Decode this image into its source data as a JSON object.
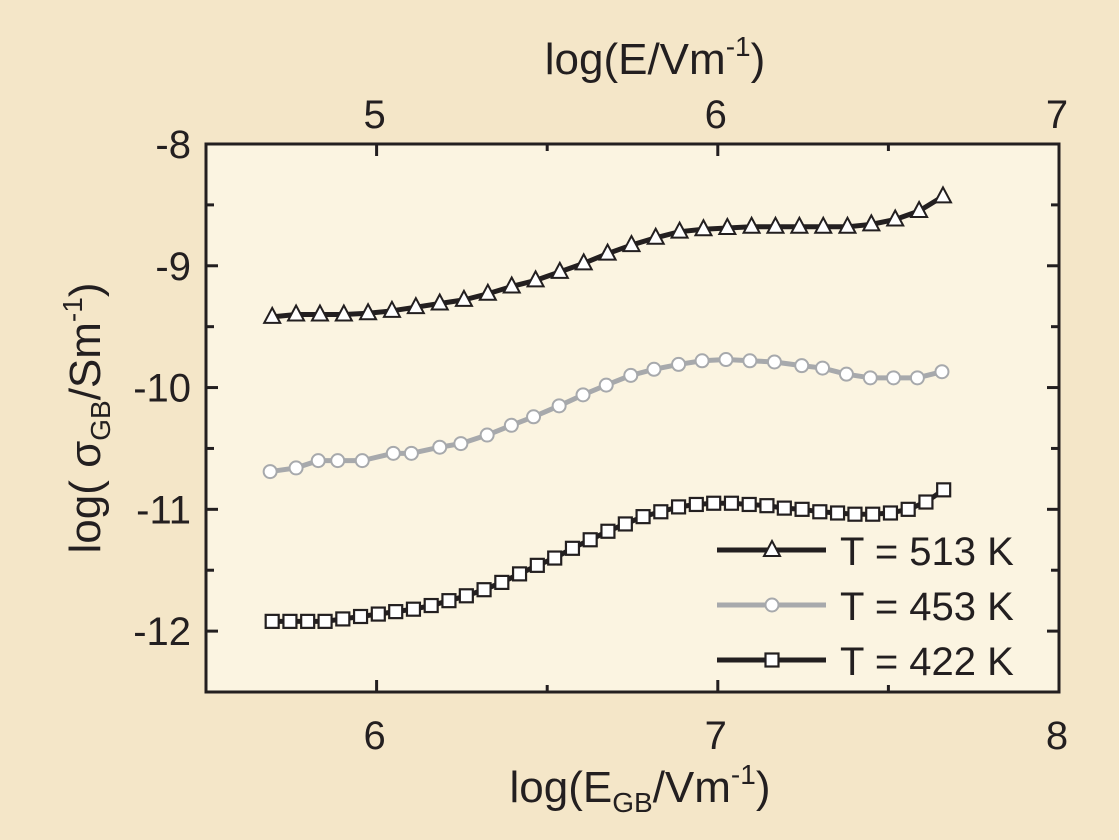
{
  "chart_data": {
    "type": "line",
    "xlabel": {
      "main": "log(E",
      "sub": "GB",
      "mid": "/Vm",
      "sup": "-1",
      "end": ")"
    },
    "x2label": {
      "main": "log(E/Vm",
      "sup": "-1",
      "end": ")"
    },
    "ylabel": {
      "main": "log( σ",
      "sub": "GB",
      "mid": "/Sm",
      "sup": "-1",
      "end": ")"
    },
    "xlim": [
      5.5,
      8
    ],
    "ylim": [
      -12.5,
      -8
    ],
    "x2lim": [
      4.5,
      7
    ],
    "xticks": [
      "6",
      "7",
      "8"
    ],
    "x2ticks": [
      "5",
      "6",
      "7"
    ],
    "yticks": [
      "-8",
      "-9",
      "-10",
      "-11",
      "-12"
    ],
    "grid": false,
    "legend_position": "bottom-right",
    "series": [
      {
        "name": "T = 513 K",
        "marker": "triangle",
        "color": "#231f20",
        "x": [
          5.694,
          5.764,
          5.834,
          5.904,
          5.975,
          6.045,
          6.115,
          6.185,
          6.256,
          6.326,
          6.396,
          6.466,
          6.537,
          6.607,
          6.677,
          6.747,
          6.818,
          6.888,
          6.958,
          7.028,
          7.099,
          7.169,
          7.239,
          7.309,
          7.38,
          7.45,
          7.52,
          7.59,
          7.66
        ],
        "y": [
          -9.42,
          -9.4,
          -9.4,
          -9.4,
          -9.39,
          -9.37,
          -9.34,
          -9.31,
          -9.28,
          -9.23,
          -9.17,
          -9.12,
          -9.05,
          -8.98,
          -8.9,
          -8.83,
          -8.77,
          -8.72,
          -8.7,
          -8.69,
          -8.68,
          -8.68,
          -8.68,
          -8.68,
          -8.68,
          -8.66,
          -8.62,
          -8.55,
          -8.43
        ]
      },
      {
        "name": "T = 453 K",
        "marker": "circle",
        "color": "#a7a9ac",
        "x": [
          5.688,
          5.764,
          5.829,
          5.886,
          5.958,
          6.049,
          6.102,
          6.185,
          6.247,
          6.324,
          6.395,
          6.46,
          6.535,
          6.605,
          6.673,
          6.745,
          6.813,
          6.885,
          6.954,
          7.024,
          7.094,
          7.166,
          7.246,
          7.307,
          7.377,
          7.447,
          7.515,
          7.585,
          7.657
        ],
        "y": [
          -10.69,
          -10.66,
          -10.6,
          -10.6,
          -10.6,
          -10.54,
          -10.54,
          -10.49,
          -10.46,
          -10.39,
          -10.31,
          -10.24,
          -10.15,
          -10.06,
          -9.98,
          -9.9,
          -9.85,
          -9.81,
          -9.78,
          -9.77,
          -9.78,
          -9.79,
          -9.82,
          -9.84,
          -9.89,
          -9.92,
          -9.92,
          -9.92,
          -9.87
        ]
      },
      {
        "name": "T = 422 K",
        "marker": "square",
        "color": "#231f20",
        "x": [
          5.694,
          5.746,
          5.798,
          5.849,
          5.901,
          5.953,
          6.005,
          6.056,
          6.108,
          6.16,
          6.212,
          6.263,
          6.315,
          6.367,
          6.419,
          6.471,
          6.522,
          6.574,
          6.626,
          6.678,
          6.729,
          6.781,
          6.833,
          6.885,
          6.937,
          6.988,
          7.04,
          7.092,
          7.144,
          7.195,
          7.247,
          7.299,
          7.351,
          7.402,
          7.454,
          7.506,
          7.558,
          7.61,
          7.662
        ],
        "y": [
          -11.92,
          -11.92,
          -11.92,
          -11.92,
          -11.9,
          -11.88,
          -11.86,
          -11.84,
          -11.82,
          -11.79,
          -11.75,
          -11.71,
          -11.66,
          -11.6,
          -11.53,
          -11.46,
          -11.4,
          -11.32,
          -11.25,
          -11.18,
          -11.12,
          -11.06,
          -11.02,
          -10.98,
          -10.96,
          -10.95,
          -10.95,
          -10.96,
          -10.97,
          -10.99,
          -11.0,
          -11.02,
          -11.03,
          -11.04,
          -11.04,
          -11.03,
          -11.0,
          -10.94,
          -10.84
        ]
      }
    ]
  },
  "colors": {
    "page_bg": "#f4e6c8",
    "plot_bg": "#fbf4e1",
    "axis": "#231f20"
  }
}
